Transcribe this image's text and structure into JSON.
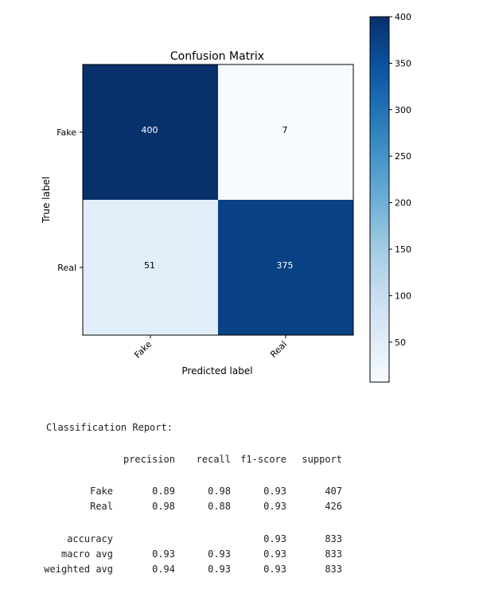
{
  "chart_data": {
    "type": "heatmap",
    "title": "Confusion Matrix",
    "xlabel": "Predicted label",
    "ylabel": "True label",
    "x_categories": [
      "Fake",
      "Real"
    ],
    "y_categories": [
      "Fake",
      "Real"
    ],
    "values": [
      [
        400,
        7
      ],
      [
        51,
        375
      ]
    ],
    "colormap": "Blues",
    "vmin": 7,
    "vmax": 400,
    "colorbar_ticks": [
      50,
      100,
      150,
      200,
      250,
      300,
      350,
      400
    ],
    "colorbar_tick_labels": [
      "50",
      "100",
      "150",
      "200",
      "250",
      "300",
      "350",
      "400"
    ],
    "colors": {
      "low": "#f7fbff",
      "high": "#08306b",
      "text_dark": "#000000",
      "text_light": "#ffffff"
    }
  },
  "report": {
    "title": "Classification Report:",
    "headers": [
      "precision",
      "recall",
      "f1-score",
      "support"
    ],
    "rows": [
      {
        "label": "Fake",
        "cells": [
          "0.89",
          "0.98",
          "0.93",
          "407"
        ]
      },
      {
        "label": "Real",
        "cells": [
          "0.98",
          "0.88",
          "0.93",
          "426"
        ]
      },
      {
        "label": "accuracy",
        "cells": [
          "",
          "",
          "0.93",
          "833"
        ]
      },
      {
        "label": "macro avg",
        "cells": [
          "0.93",
          "0.93",
          "0.93",
          "833"
        ]
      },
      {
        "label": "weighted avg",
        "cells": [
          "0.94",
          "0.93",
          "0.93",
          "833"
        ]
      }
    ]
  }
}
